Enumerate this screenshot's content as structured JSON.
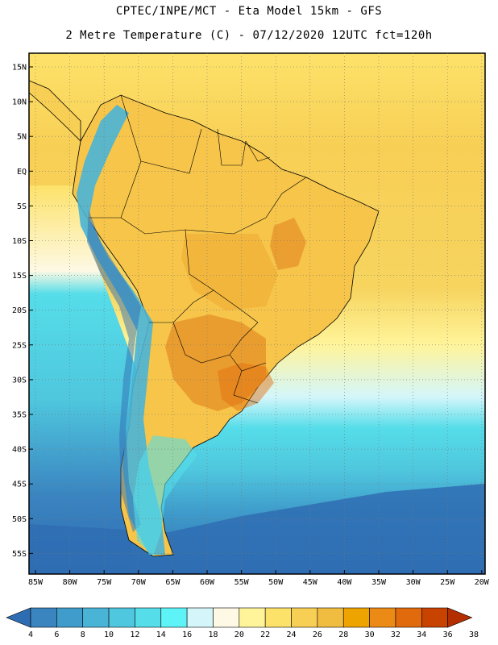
{
  "title": {
    "line1": "CPTEC/INPE/MCT -  Eta Model 15km - GFS",
    "line2": "2 Metre Temperature (C) - 07/12/2020 12UTC fct=120h"
  },
  "axes": {
    "lat_labels": [
      "15N",
      "10N",
      "5N",
      "EQ",
      "5S",
      "10S",
      "15S",
      "20S",
      "25S",
      "30S",
      "35S",
      "40S",
      "45S",
      "50S",
      "55S"
    ],
    "lon_labels": [
      "85W",
      "80W",
      "75W",
      "70W",
      "65W",
      "60W",
      "55W",
      "50W",
      "45W",
      "40W",
      "35W",
      "30W",
      "25W",
      "20W"
    ]
  },
  "colorbar": {
    "labels": [
      "4",
      "6",
      "8",
      "10",
      "12",
      "14",
      "16",
      "18",
      "20",
      "22",
      "24",
      "26",
      "28",
      "30",
      "32",
      "34",
      "36",
      "38"
    ],
    "colors": [
      "#2f6db3",
      "#3a84c0",
      "#3f9ccb",
      "#49b4d6",
      "#4fc7de",
      "#55dde9",
      "#5ef3f7",
      "#d4f6fb",
      "#fdf9e4",
      "#fff49a",
      "#fde26a",
      "#f8cf55",
      "#f1bd40",
      "#eea400",
      "#ec8a16",
      "#e06a0c",
      "#c84200",
      "#b32e00"
    ]
  },
  "colors": {
    "ocean_south_deep": "#2f6db3",
    "ocean_mid": "#3f9ccb",
    "ocean_cool": "#55dde9",
    "ocean_warm": "#fde26a",
    "land_warm": "#f1bd40",
    "land_hot": "#e08a22",
    "andes_cold": "#49b4d6",
    "border": "#000000"
  }
}
